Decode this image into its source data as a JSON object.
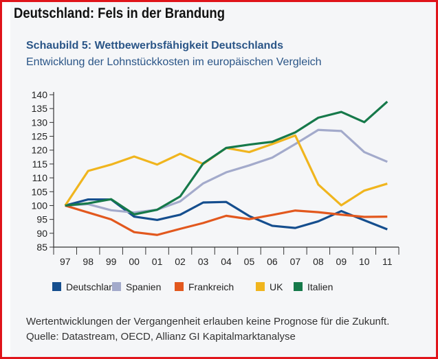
{
  "headline": "Deutschland: Fels in der Brandung",
  "chart_data": {
    "type": "line",
    "title": "Schaubild 5: Wettbewerbsfähigkeit Deutschlands",
    "subtitle": "Entwicklung der Lohnstückkosten im europäischen Vergleich",
    "categories": [
      "97",
      "98",
      "99",
      "00",
      "01",
      "02",
      "03",
      "04",
      "05",
      "06",
      "07",
      "08",
      "09",
      "10",
      "11"
    ],
    "ylim": [
      85,
      140
    ],
    "yticks": [
      85,
      90,
      95,
      100,
      105,
      110,
      115,
      120,
      125,
      130,
      135,
      140
    ],
    "grid": false,
    "legend": "bottom",
    "series": [
      {
        "name": "Deutschland",
        "color": "#154e8e",
        "values": [
          100,
          102.2,
          102.2,
          96,
          94.8,
          96.7,
          101.1,
          101.3,
          96.2,
          92.7,
          91.9,
          94.3,
          98,
          94.7,
          91.4
        ]
      },
      {
        "name": "Spanien",
        "color": "#a3aacb",
        "values": [
          100,
          100.5,
          98.3,
          97.5,
          98.5,
          101.5,
          108,
          112,
          114.5,
          117.3,
          122.2,
          127.3,
          126.9,
          119.3,
          115.8
        ]
      },
      {
        "name": "Frankreich",
        "color": "#e2581e",
        "values": [
          100,
          97.5,
          95,
          90.4,
          89.4,
          91.6,
          93.7,
          96.3,
          95.1,
          96.6,
          98.2,
          97.6,
          96.7,
          95.9,
          96
        ]
      },
      {
        "name": "UK",
        "color": "#f0b51e",
        "values": [
          100,
          112.5,
          114.8,
          117.7,
          114.8,
          118.7,
          115,
          120.8,
          119.3,
          122.2,
          125.3,
          107.6,
          100.1,
          105.4,
          107.9
        ]
      },
      {
        "name": "Italien",
        "color": "#16794a",
        "values": [
          100,
          100.8,
          102.3,
          96.8,
          98.5,
          103.3,
          115.2,
          120.8,
          122,
          123,
          126.4,
          131.7,
          133.8,
          130.1,
          137.5
        ]
      }
    ]
  },
  "footnote": [
    "Wertentwicklungen der Vergangenheit erlauben keine Prognose für die Zukunft.",
    "Quelle: Datastream, OECD, Allianz GI Kapitalmarktanalyse"
  ]
}
